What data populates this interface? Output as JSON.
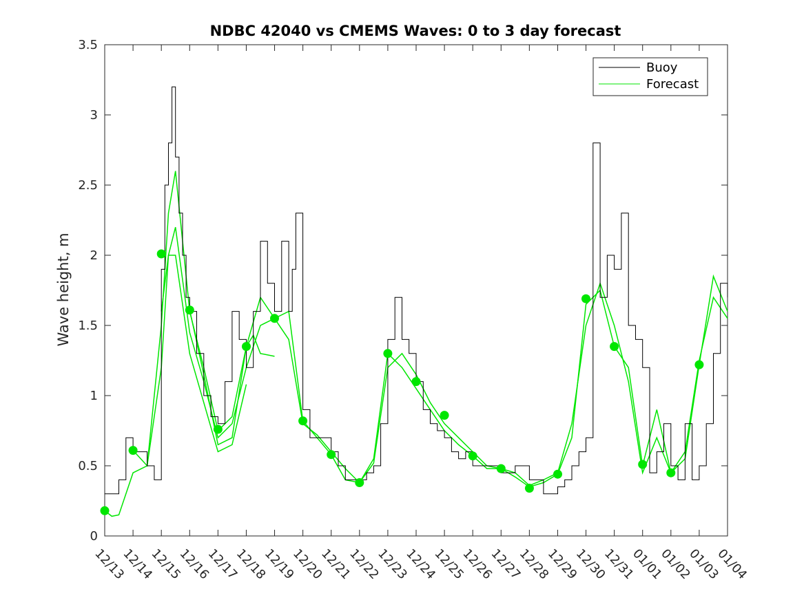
{
  "chart_data": {
    "type": "line",
    "title": "NDBC 42040 vs CMEMS Waves: 0 to 3 day forecast",
    "xlabel": "",
    "ylabel": "Wave height, m",
    "xlim": [
      "12/13",
      "01/04"
    ],
    "ylim": [
      0,
      3.5
    ],
    "x_ticks": [
      "12/13",
      "12/14",
      "12/15",
      "12/16",
      "12/17",
      "12/18",
      "12/19",
      "12/20",
      "12/21",
      "12/22",
      "12/23",
      "12/24",
      "12/25",
      "12/26",
      "12/27",
      "12/28",
      "12/29",
      "12/30",
      "12/31",
      "01/01",
      "01/02",
      "01/03",
      "01/04"
    ],
    "y_ticks": [
      "0",
      "0.5",
      "1",
      "1.5",
      "2",
      "2.5",
      "3",
      "3.5"
    ],
    "y_tick_values": [
      0,
      0.5,
      1,
      1.5,
      2,
      2.5,
      3,
      3.5
    ],
    "legend": {
      "position": "top-right",
      "entries": [
        "Buoy",
        "Forecast"
      ]
    },
    "colors": {
      "buoy": "#000000",
      "forecast": "#00e600"
    },
    "grid": false,
    "series": [
      {
        "name": "Buoy",
        "x": [
          "12/13 00:00",
          "12/13 06:00",
          "12/13 12:00",
          "12/13 18:00",
          "12/14 00:00",
          "12/14 06:00",
          "12/14 12:00",
          "12/14 18:00",
          "12/15 00:00",
          "12/15 03:00",
          "12/15 06:00",
          "12/15 09:00",
          "12/15 12:00",
          "12/15 15:00",
          "12/15 18:00",
          "12/15 21:00",
          "12/16 00:00",
          "12/16 06:00",
          "12/16 12:00",
          "12/16 18:00",
          "12/17 00:00",
          "12/17 06:00",
          "12/17 12:00",
          "12/17 18:00",
          "12/18 00:00",
          "12/18 06:00",
          "12/18 12:00",
          "12/18 18:00",
          "12/19 00:00",
          "12/19 06:00",
          "12/19 12:00",
          "12/19 15:00",
          "12/19 18:00",
          "12/20 00:00",
          "12/20 06:00",
          "12/20 12:00",
          "12/20 18:00",
          "12/21 00:00",
          "12/21 06:00",
          "12/21 12:00",
          "12/21 18:00",
          "12/22 00:00",
          "12/22 06:00",
          "12/22 12:00",
          "12/22 18:00",
          "12/23 00:00",
          "12/23 06:00",
          "12/23 12:00",
          "12/23 18:00",
          "12/24 00:00",
          "12/24 06:00",
          "12/24 12:00",
          "12/24 18:00",
          "12/25 00:00",
          "12/25 06:00",
          "12/25 12:00",
          "12/25 18:00",
          "12/26 00:00",
          "12/26 12:00",
          "12/27 00:00",
          "12/27 12:00",
          "12/28 00:00",
          "12/28 12:00",
          "12/29 00:00",
          "12/29 06:00",
          "12/29 12:00",
          "12/29 18:00",
          "12/30 00:00",
          "12/30 06:00",
          "12/30 12:00",
          "12/30 18:00",
          "12/31 00:00",
          "12/31 06:00",
          "12/31 12:00",
          "12/31 18:00",
          "01/01 00:00",
          "01/01 06:00",
          "01/01 12:00",
          "01/01 18:00",
          "01/02 00:00",
          "01/02 06:00",
          "01/02 12:00",
          "01/02 18:00",
          "01/03 00:00",
          "01/03 06:00",
          "01/03 12:00",
          "01/03 18:00",
          "01/04 00:00"
        ],
        "values": [
          0.3,
          0.3,
          0.4,
          0.7,
          0.6,
          0.6,
          0.5,
          0.4,
          1.9,
          2.5,
          2.8,
          3.2,
          2.7,
          2.3,
          2.0,
          1.7,
          1.6,
          1.3,
          1.0,
          0.85,
          0.8,
          1.1,
          1.6,
          1.4,
          1.2,
          1.6,
          2.1,
          1.8,
          1.6,
          2.1,
          1.6,
          1.9,
          2.3,
          0.9,
          0.7,
          0.7,
          0.7,
          0.6,
          0.5,
          0.4,
          0.4,
          0.4,
          0.45,
          0.5,
          0.8,
          1.4,
          1.7,
          1.4,
          1.3,
          1.1,
          0.9,
          0.8,
          0.75,
          0.7,
          0.6,
          0.55,
          0.6,
          0.5,
          0.5,
          0.45,
          0.5,
          0.4,
          0.3,
          0.35,
          0.4,
          0.5,
          0.6,
          0.7,
          2.8,
          1.7,
          2.0,
          1.9,
          2.3,
          1.5,
          1.4,
          1.2,
          0.45,
          0.6,
          0.8,
          0.5,
          0.4,
          0.8,
          0.4,
          0.5,
          0.8,
          1.3,
          1.8,
          1.7
        ]
      },
      {
        "name": "Forecast",
        "segments": [
          {
            "x": [
              "12/13 00:00",
              "12/13 06:00",
              "12/13 12:00",
              "12/14 00:00",
              "12/14 12:00",
              "12/15 00:00",
              "12/15 06:00",
              "12/15 12:00",
              "12/16 00:00",
              "12/16 12:00",
              "12/17 00:00",
              "12/17 12:00",
              "12/18 00:00",
              "12/18 12:00",
              "12/19 00:00",
              "12/19 12:00",
              "12/20 00:00",
              "12/20 12:00",
              "12/21 00:00",
              "12/21 12:00",
              "12/22 00:00",
              "12/22 12:00",
              "12/23 00:00",
              "12/23 12:00",
              "12/24 00:00",
              "12/24 12:00",
              "12/25 00:00",
              "12/25 12:00",
              "12/26 00:00",
              "12/26 12:00",
              "12/27 00:00",
              "12/27 12:00",
              "12/28 00:00",
              "12/28 12:00",
              "12/29 00:00",
              "12/29 12:00",
              "12/30 00:00",
              "12/30 12:00",
              "12/31 00:00",
              "12/31 12:00",
              "01/01 00:00",
              "01/01 12:00",
              "01/02 00:00",
              "01/02 12:00",
              "01/03 00:00",
              "01/03 12:00",
              "01/04 00:00"
            ],
            "values": [
              0.18,
              0.14,
              0.15,
              0.45,
              0.5,
              1.5,
              2.3,
              2.6,
              1.6,
              1.2,
              0.75,
              0.85,
              1.35,
              1.7,
              1.55,
              1.6,
              0.82,
              0.7,
              0.58,
              0.4,
              0.38,
              0.55,
              1.3,
              1.2,
              1.05,
              0.9,
              0.75,
              0.65,
              0.57,
              0.48,
              0.48,
              0.42,
              0.35,
              0.38,
              0.44,
              0.7,
              1.65,
              1.75,
              1.35,
              1.2,
              0.5,
              0.9,
              0.45,
              0.55,
              1.22,
              1.85,
              1.6
            ]
          },
          {
            "x": [
              "12/14 00:00",
              "12/14 12:00",
              "12/15 00:00",
              "12/15 06:00",
              "12/15 12:00",
              "12/16 00:00",
              "12/16 12:00",
              "12/17 00:00",
              "12/17 12:00",
              "12/18 00:00",
              "12/18 12:00",
              "12/19 00:00",
              "12/19 12:00",
              "12/20 00:00",
              "12/20 12:00",
              "12/21 00:00",
              "12/21 12:00",
              "12/22 00:00",
              "12/22 12:00",
              "12/23 00:00",
              "12/23 12:00",
              "12/24 00:00",
              "12/24 12:00",
              "12/25 00:00",
              "12/25 12:00",
              "12/26 00:00",
              "12/26 12:00",
              "12/27 00:00",
              "12/27 12:00",
              "12/28 00:00",
              "12/28 12:00",
              "12/29 00:00",
              "12/29 12:00",
              "12/30 00:00",
              "12/30 12:00",
              "12/31 00:00",
              "12/31 12:00",
              "01/01 00:00",
              "01/01 12:00",
              "01/02 00:00",
              "01/02 12:00",
              "01/03 00:00",
              "01/03 12:00",
              "01/04 00:00"
            ],
            "values": [
              0.61,
              0.5,
              1.2,
              2.0,
              2.2,
              1.45,
              1.1,
              0.7,
              0.8,
              1.2,
              1.5,
              1.55,
              1.4,
              0.8,
              0.72,
              0.6,
              0.48,
              0.38,
              0.52,
              1.2,
              1.3,
              1.15,
              0.95,
              0.8,
              0.7,
              0.6,
              0.5,
              0.48,
              0.45,
              0.36,
              0.4,
              0.45,
              0.8,
              1.5,
              1.8,
              1.5,
              1.1,
              0.45,
              0.7,
              0.45,
              0.6,
              1.25,
              1.7,
              1.55
            ]
          },
          {
            "x": [
              "12/15 00:00",
              "12/15 06:00",
              "12/15 12:00",
              "12/16 00:00",
              "12/16 12:00",
              "12/17 00:00",
              "12/17 12:00",
              "12/18 00:00"
            ],
            "values": [
              1.6,
              2.0,
              2.0,
              1.3,
              0.95,
              0.6,
              0.65,
              1.08
            ]
          },
          {
            "x": [
              "12/16 00:00",
              "12/16 12:00",
              "12/17 00:00",
              "12/17 12:00",
              "12/18 00:00",
              "12/18 06:00",
              "12/18 12:00",
              "12/19 00:00"
            ],
            "values": [
              1.61,
              1.15,
              0.65,
              0.7,
              1.35,
              1.43,
              1.3,
              1.28
            ]
          }
        ],
        "markers": {
          "x": [
            "12/13 00:00",
            "12/14 00:00",
            "12/15 00:00",
            "12/16 00:00",
            "12/17 00:00",
            "12/18 00:00",
            "12/19 00:00",
            "12/20 00:00",
            "12/21 00:00",
            "12/22 00:00",
            "12/23 00:00",
            "12/24 00:00",
            "12/25 00:00",
            "12/26 00:00",
            "12/27 00:00",
            "12/28 00:00",
            "12/29 00:00",
            "12/30 00:00",
            "12/31 00:00",
            "01/01 00:00",
            "01/02 00:00",
            "01/03 00:00"
          ],
          "values": [
            0.18,
            0.61,
            2.01,
            1.61,
            0.76,
            1.35,
            1.55,
            0.82,
            0.58,
            0.38,
            1.3,
            1.1,
            0.86,
            0.57,
            0.48,
            0.34,
            0.44,
            1.69,
            1.35,
            0.51,
            0.45,
            1.22
          ]
        }
      }
    ]
  }
}
